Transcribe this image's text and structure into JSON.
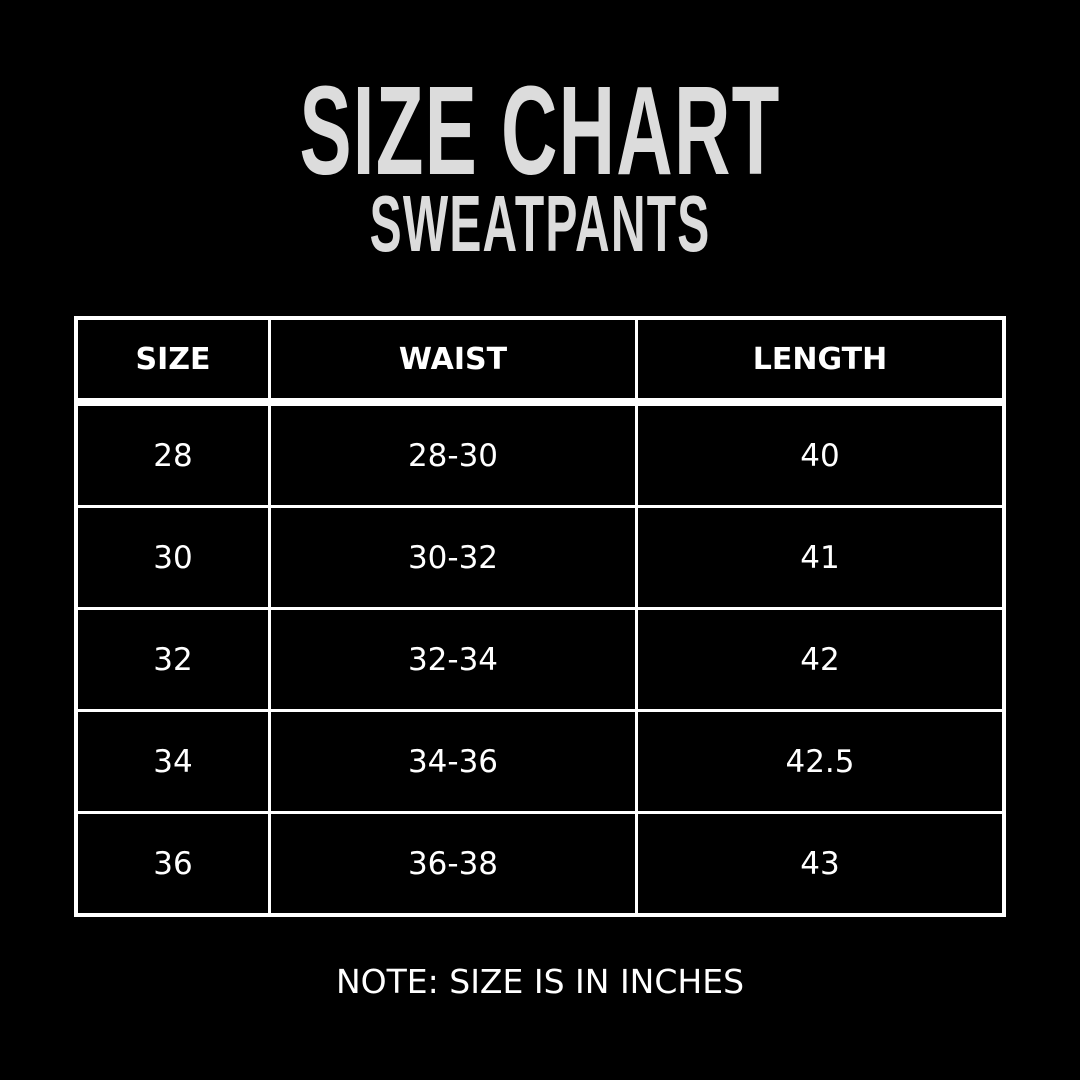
{
  "title": "SIZE CHART",
  "subtitle": "SWEATPANTS",
  "table": {
    "headers": [
      "SIZE",
      "WAIST",
      "LENGTH"
    ],
    "rows": [
      [
        "28",
        "28-30",
        "40"
      ],
      [
        "30",
        "30-32",
        "41"
      ],
      [
        "32",
        "32-34",
        "42"
      ],
      [
        "34",
        "34-36",
        "42.5"
      ],
      [
        "36",
        "36-38",
        "43"
      ]
    ]
  },
  "note": "NOTE: SIZE IS IN INCHES",
  "colors": {
    "background": "#000000",
    "title": "#dcdcdc",
    "text": "#ffffff",
    "grid": "#ffffff"
  }
}
